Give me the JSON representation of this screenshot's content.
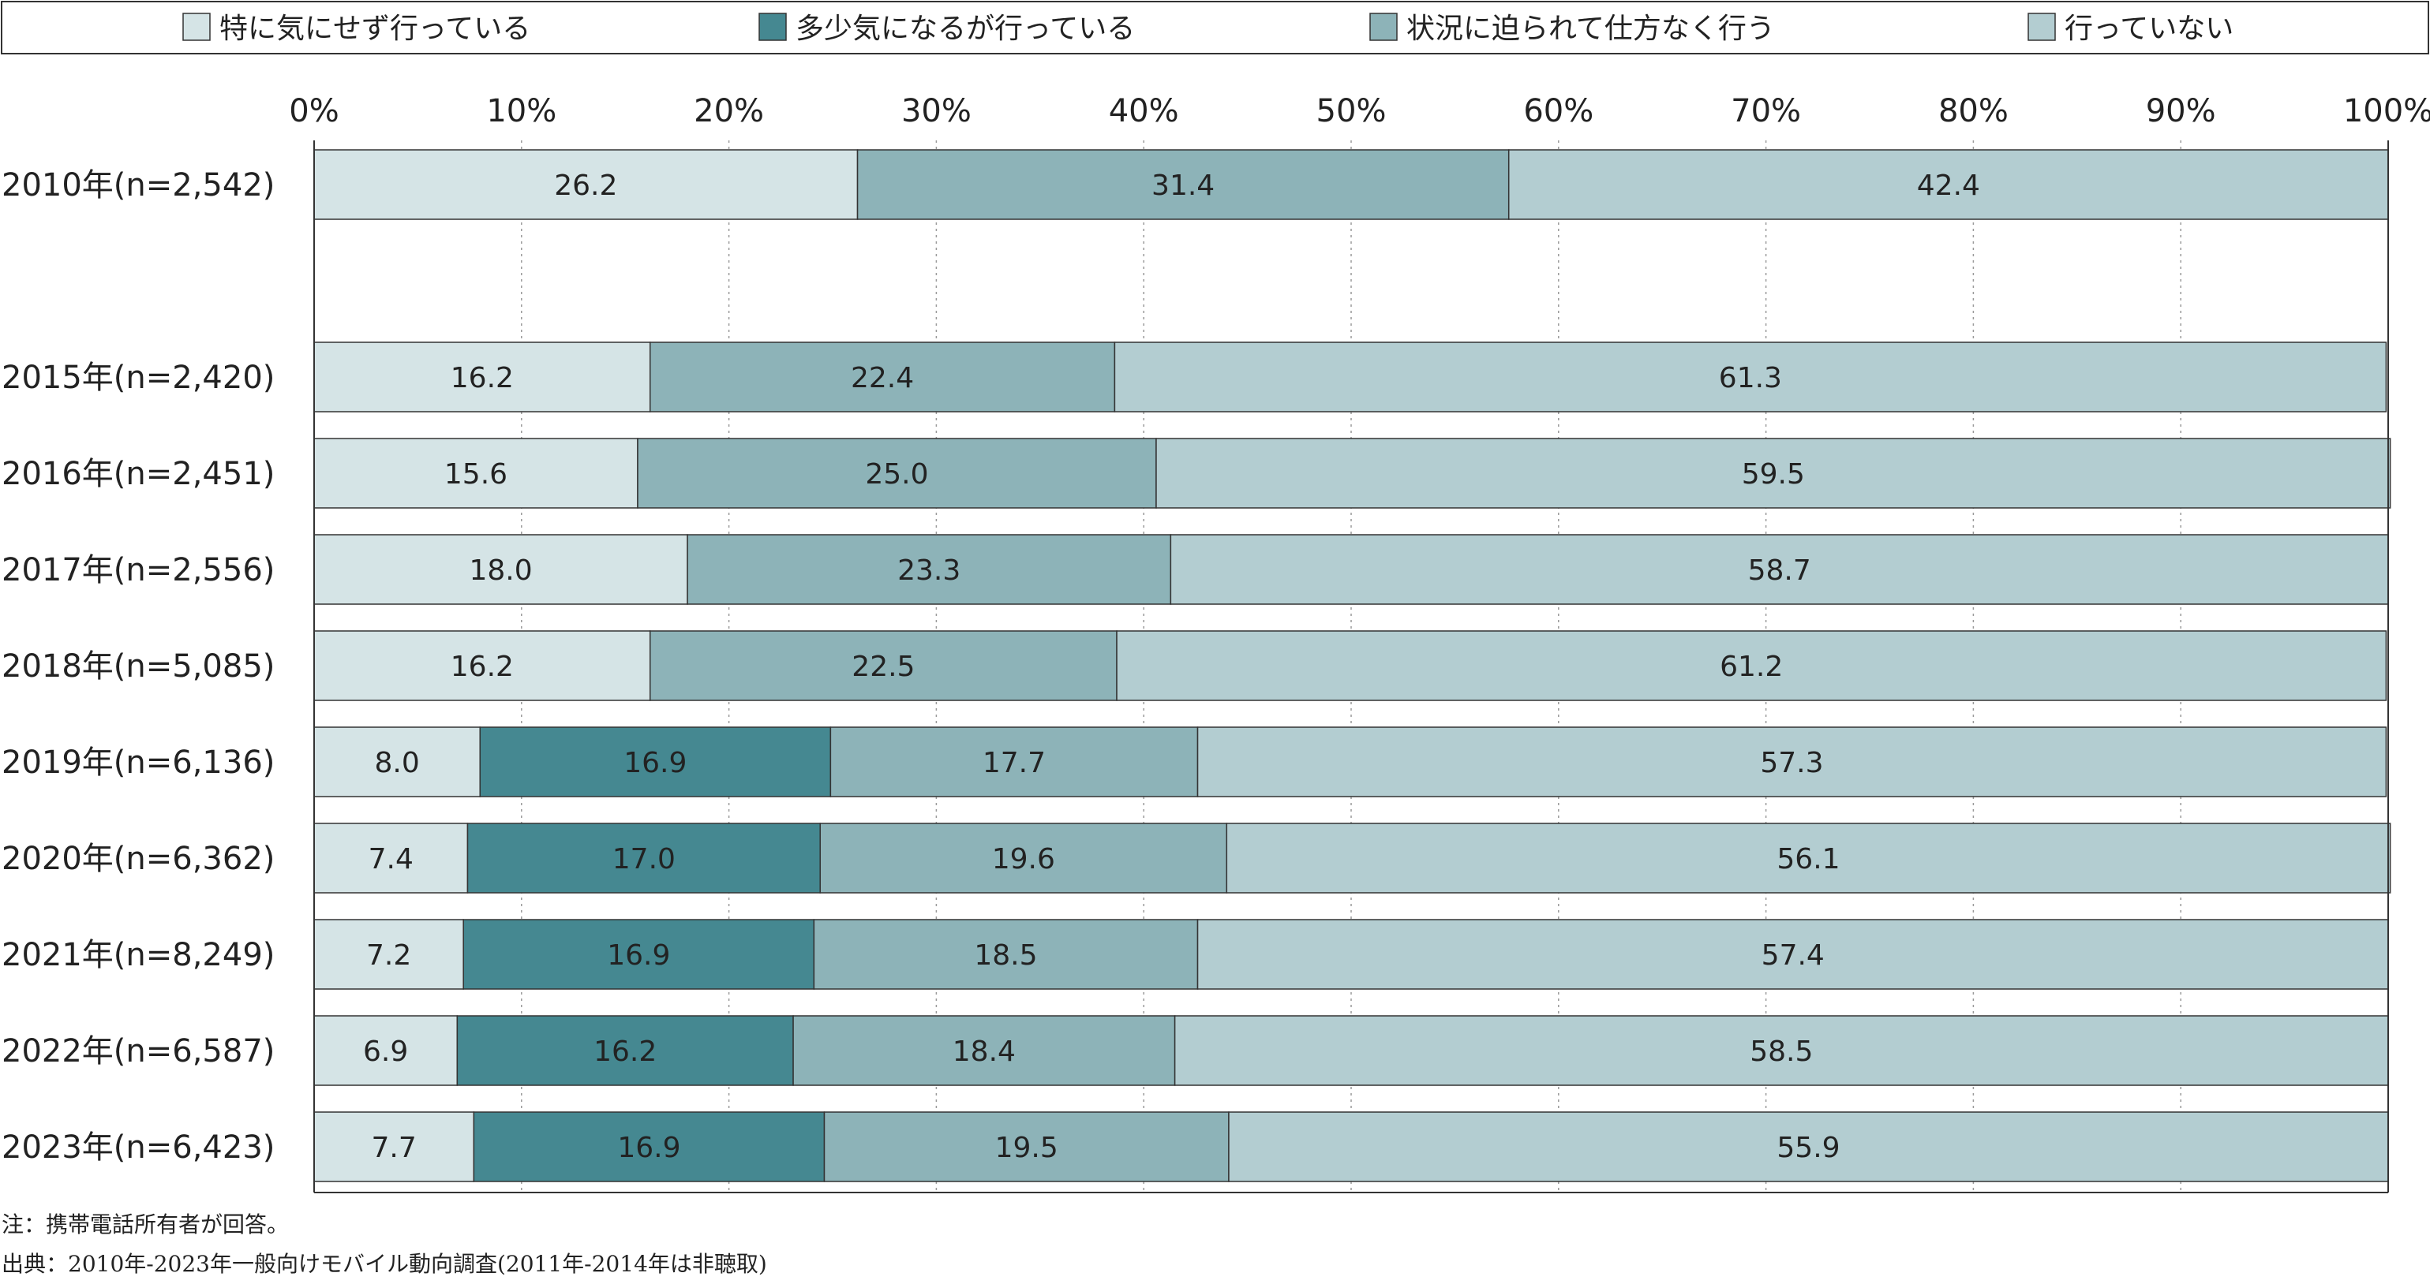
{
  "chart_data": {
    "type": "bar",
    "orientation": "horizontal",
    "stacked": "percent",
    "categories": [
      "2010年(n=2,542)",
      "",
      "2015年(n=2,420)",
      "2016年(n=2,451)",
      "2017年(n=2,556)",
      "2018年(n=5,085)",
      "2019年(n=6,136)",
      "2020年(n=6,362)",
      "2021年(n=8,249)",
      "2022年(n=6,587)",
      "2023年(n=6,423)"
    ],
    "series": [
      {
        "name": "特に気にせず行っている",
        "color": "#d5e4e6",
        "values": [
          26.2,
          null,
          16.2,
          15.6,
          18.0,
          16.2,
          8.0,
          7.4,
          7.2,
          6.9,
          7.7
        ]
      },
      {
        "name": "多少気になるが行っている",
        "color": "#458891",
        "values": [
          null,
          null,
          null,
          null,
          null,
          null,
          16.9,
          17.0,
          16.9,
          16.2,
          16.9
        ]
      },
      {
        "name": "状況に迫られて仕方なく行う",
        "color": "#8db3b8",
        "values": [
          31.4,
          null,
          22.4,
          25.0,
          23.3,
          22.5,
          17.7,
          19.6,
          18.5,
          18.4,
          19.5
        ]
      },
      {
        "name": "行っていない",
        "color": "#b3cdd1",
        "values": [
          42.4,
          null,
          61.3,
          59.5,
          58.7,
          61.2,
          57.3,
          56.1,
          57.4,
          58.5,
          55.9
        ]
      }
    ],
    "x_ticks": [
      "0%",
      "10%",
      "20%",
      "30%",
      "40%",
      "50%",
      "60%",
      "70%",
      "80%",
      "90%",
      "100%"
    ],
    "xlim": [
      0,
      100
    ],
    "axis_position": "top",
    "grid": "vertical dotted",
    "legend_position": "top",
    "title": "",
    "xlabel": "",
    "ylabel": ""
  },
  "notes": [
    "注：携帯電話所有者が回答。",
    "出典：2010年-2023年一般向けモバイル動向調査(2011年-2014年は非聴取)"
  ]
}
